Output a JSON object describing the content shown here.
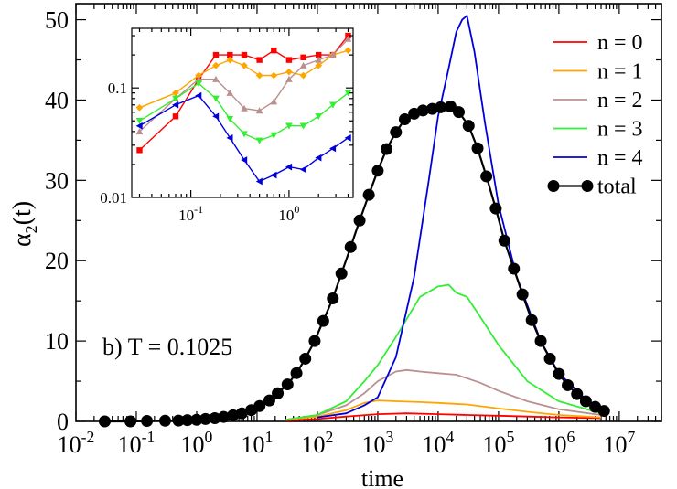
{
  "chart_data": [
    {
      "type": "line",
      "title": "",
      "xlabel": "time",
      "ylabel": "α2(t)",
      "xscale": "log",
      "xlim": [
        0.01,
        50000000
      ],
      "ylim": [
        0,
        52
      ],
      "x_ticks": [
        {
          "value": 0.01,
          "label": "10",
          "exp": "-2"
        },
        {
          "value": 0.1,
          "label": "10",
          "exp": "-1"
        },
        {
          "value": 1,
          "label": "10",
          "exp": "0"
        },
        {
          "value": 10,
          "label": "10",
          "exp": "1"
        },
        {
          "value": 100,
          "label": "10",
          "exp": "2"
        },
        {
          "value": 1000,
          "label": "10",
          "exp": "3"
        },
        {
          "value": 10000,
          "label": "10",
          "exp": "4"
        },
        {
          "value": 100000,
          "label": "10",
          "exp": "5"
        },
        {
          "value": 1000000,
          "label": "10",
          "exp": "6"
        },
        {
          "value": 10000000,
          "label": "10",
          "exp": "7"
        }
      ],
      "y_ticks": [
        0,
        10,
        20,
        30,
        40,
        50
      ],
      "annotation": "b) T = 0.1025",
      "legend_position": "top-right",
      "series": [
        {
          "name": "n = 0",
          "color": "#ff0000",
          "marker": "none",
          "x": [
            30,
            100,
            300,
            1000,
            3000,
            10000,
            30000,
            100000,
            300000,
            1000000,
            5000000
          ],
          "y": [
            0.1,
            0.3,
            0.6,
            0.9,
            1.0,
            0.9,
            0.8,
            0.7,
            0.6,
            0.5,
            0.4
          ]
        },
        {
          "name": "n = 1",
          "color": "#ffa500",
          "marker": "none",
          "x": [
            30,
            100,
            300,
            600,
            1000,
            2000,
            5000,
            10000,
            30000,
            100000,
            300000,
            1000000,
            5000000
          ],
          "y": [
            0.2,
            0.6,
            1.4,
            2.3,
            2.6,
            2.5,
            2.4,
            2.3,
            2.1,
            1.6,
            1.2,
            0.8,
            0.5
          ]
        },
        {
          "name": "n = 2",
          "color": "#bc8f8f",
          "marker": "none",
          "x": [
            30,
            100,
            300,
            600,
            1000,
            2000,
            3000,
            5000,
            10000,
            20000,
            50000,
            100000,
            300000,
            1000000,
            5000000
          ],
          "y": [
            0.2,
            0.8,
            2.0,
            3.5,
            5.0,
            6.2,
            6.4,
            6.2,
            6.0,
            5.8,
            4.8,
            3.8,
            2.5,
            1.5,
            0.8
          ]
        },
        {
          "name": "n = 3",
          "color": "#33ee33",
          "marker": "none",
          "x": [
            30,
            100,
            300,
            600,
            1000,
            2000,
            5000,
            10000,
            15000,
            20000,
            30000,
            50000,
            100000,
            300000,
            1000000,
            5000000
          ],
          "y": [
            0.2,
            0.8,
            2.5,
            5.0,
            7.0,
            10.5,
            15.5,
            16.8,
            17.0,
            16.0,
            15.5,
            13.0,
            9.5,
            5.0,
            2.5,
            1.0
          ]
        },
        {
          "name": "n = 4",
          "color": "#0000dd",
          "marker": "none",
          "x": [
            100,
            300,
            600,
            1000,
            2000,
            4000,
            7000,
            10000,
            15000,
            20000,
            25000,
            30000,
            40000,
            60000,
            100000,
            200000,
            500000,
            1000000,
            3000000,
            6000000
          ],
          "y": [
            0.5,
            1.0,
            2.0,
            3.0,
            8.0,
            18.0,
            30.0,
            38.0,
            44.0,
            48.5,
            50.0,
            50.5,
            46.0,
            37.0,
            27.0,
            18.0,
            10.0,
            6.0,
            2.5,
            1.0
          ]
        },
        {
          "name": "total",
          "color": "#000000",
          "marker": "circle",
          "x": [
            0.03,
            0.08,
            0.15,
            0.3,
            0.5,
            0.7,
            1.0,
            1.4,
            2.0,
            2.8,
            4.0,
            5.6,
            8.0,
            11,
            16,
            22,
            32,
            45,
            63,
            90,
            125,
            180,
            250,
            355,
            500,
            710,
            1000,
            1400,
            2000,
            2800,
            4000,
            5600,
            8000,
            11000,
            16000,
            22000,
            32000,
            45000,
            63000,
            90000,
            125000,
            180000,
            250000,
            355000,
            500000,
            710000,
            1000000,
            1400000,
            2000000,
            2800000,
            4000000,
            5600000
          ],
          "y": [
            0,
            0,
            0.05,
            0.08,
            0.1,
            0.15,
            0.2,
            0.3,
            0.4,
            0.55,
            0.75,
            1.0,
            1.4,
            1.9,
            2.6,
            3.5,
            4.6,
            6.0,
            7.8,
            10.0,
            12.5,
            15.3,
            18.4,
            21.7,
            25.0,
            28.2,
            31.2,
            33.9,
            36.0,
            37.6,
            38.3,
            38.7,
            38.9,
            39.1,
            39.2,
            38.5,
            36.8,
            34.0,
            30.5,
            26.5,
            22.5,
            19.0,
            15.8,
            12.6,
            10.0,
            7.8,
            5.9,
            4.5,
            3.4,
            2.5,
            1.8,
            1.3
          ]
        }
      ]
    },
    {
      "type": "line",
      "title": "",
      "xlabel": "",
      "ylabel": "",
      "xscale": "log",
      "yscale": "log",
      "xlim": [
        0.025,
        4.5
      ],
      "ylim": [
        0.01,
        0.35
      ],
      "x_ticks": [
        {
          "value": 0.1,
          "label": "10",
          "exp": "-1"
        },
        {
          "value": 1,
          "label": "10",
          "exp": "0"
        }
      ],
      "y_ticks": [
        {
          "value": 0.01,
          "label": "0.01"
        },
        {
          "value": 0.1,
          "label": "0.1"
        }
      ],
      "series": [
        {
          "name": "n = 0",
          "color": "#ff0000",
          "marker": "square",
          "x": [
            0.03,
            0.07,
            0.12,
            0.18,
            0.25,
            0.35,
            0.5,
            0.7,
            1.0,
            1.4,
            2.0,
            2.8,
            4.0
          ],
          "y": [
            0.027,
            0.055,
            0.12,
            0.2,
            0.2,
            0.2,
            0.18,
            0.22,
            0.18,
            0.19,
            0.2,
            0.2,
            0.3
          ]
        },
        {
          "name": "n = 1",
          "color": "#ffa500",
          "marker": "diamond",
          "x": [
            0.03,
            0.07,
            0.12,
            0.18,
            0.25,
            0.35,
            0.5,
            0.7,
            1.0,
            1.4,
            2.0,
            2.8,
            4.0
          ],
          "y": [
            0.066,
            0.09,
            0.13,
            0.16,
            0.18,
            0.16,
            0.13,
            0.13,
            0.14,
            0.13,
            0.16,
            0.2,
            0.22
          ]
        },
        {
          "name": "n = 2",
          "color": "#bc8f8f",
          "marker": "triangle-up",
          "x": [
            0.03,
            0.07,
            0.12,
            0.18,
            0.25,
            0.35,
            0.5,
            0.7,
            1.0,
            1.4,
            2.0,
            2.8,
            4.0
          ],
          "y": [
            0.04,
            0.08,
            0.12,
            0.12,
            0.09,
            0.065,
            0.062,
            0.075,
            0.12,
            0.16,
            0.18,
            0.2,
            0.28
          ]
        },
        {
          "name": "n = 3",
          "color": "#33ee33",
          "marker": "triangle-down",
          "x": [
            0.03,
            0.07,
            0.12,
            0.18,
            0.25,
            0.35,
            0.5,
            0.7,
            1.0,
            1.4,
            2.0,
            2.8,
            4.0
          ],
          "y": [
            0.05,
            0.08,
            0.11,
            0.08,
            0.052,
            0.038,
            0.033,
            0.037,
            0.045,
            0.045,
            0.055,
            0.07,
            0.09
          ]
        },
        {
          "name": "n = 4",
          "color": "#0000dd",
          "marker": "triangle-left",
          "x": [
            0.03,
            0.07,
            0.12,
            0.18,
            0.25,
            0.35,
            0.5,
            0.7,
            1.0,
            1.4,
            2.0,
            2.8,
            4.0
          ],
          "y": [
            0.045,
            0.07,
            0.085,
            0.055,
            0.035,
            0.022,
            0.014,
            0.016,
            0.019,
            0.018,
            0.023,
            0.028,
            0.035
          ]
        }
      ]
    }
  ]
}
